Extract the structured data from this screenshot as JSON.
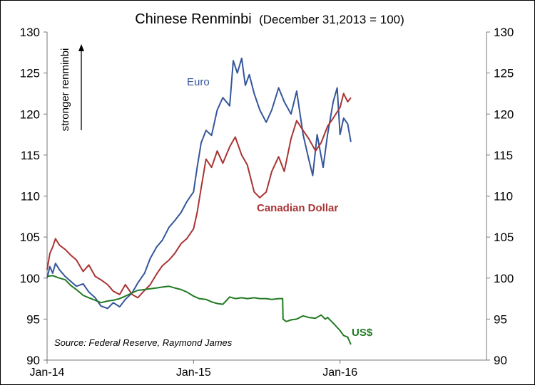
{
  "chart_data": {
    "type": "line",
    "title": "Chinese Renminbi",
    "subtitle": "(December 31,2013 = 100)",
    "ylabel": "stronger renminbi",
    "ylim": [
      90,
      130
    ],
    "yticks": [
      90,
      95,
      100,
      105,
      110,
      115,
      120,
      125,
      130
    ],
    "xlim": [
      "2014-01-01",
      "2016-12-31"
    ],
    "xticks": [
      {
        "date": "2014-01-01",
        "label": "Jan-14"
      },
      {
        "date": "2015-01-01",
        "label": "Jan-15"
      },
      {
        "date": "2016-01-01",
        "label": "Jan-16"
      }
    ],
    "source": "Source: Federal Reserve, Raymond James",
    "grid": false,
    "legend": "inline labels",
    "series": [
      {
        "name": "Euro",
        "color": "#35569b",
        "points": [
          [
            "2014-01-01",
            100.0
          ],
          [
            "2014-01-08",
            101.4
          ],
          [
            "2014-01-15",
            100.6
          ],
          [
            "2014-01-22",
            101.8
          ],
          [
            "2014-02-01",
            101.0
          ],
          [
            "2014-02-15",
            100.2
          ],
          [
            "2014-03-01",
            99.6
          ],
          [
            "2014-03-15",
            99.0
          ],
          [
            "2014-04-01",
            99.3
          ],
          [
            "2014-04-15",
            98.3
          ],
          [
            "2014-05-01",
            97.6
          ],
          [
            "2014-05-15",
            96.6
          ],
          [
            "2014-06-01",
            96.3
          ],
          [
            "2014-06-15",
            97.0
          ],
          [
            "2014-07-01",
            96.5
          ],
          [
            "2014-07-15",
            97.4
          ],
          [
            "2014-08-01",
            98.2
          ],
          [
            "2014-08-15",
            99.4
          ],
          [
            "2014-09-01",
            100.6
          ],
          [
            "2014-09-15",
            102.4
          ],
          [
            "2014-10-01",
            103.8
          ],
          [
            "2014-10-15",
            104.6
          ],
          [
            "2014-11-01",
            106.2
          ],
          [
            "2014-11-15",
            107.0
          ],
          [
            "2014-12-01",
            108.0
          ],
          [
            "2014-12-15",
            109.3
          ],
          [
            "2015-01-01",
            110.5
          ],
          [
            "2015-01-10",
            113.5
          ],
          [
            "2015-01-20",
            116.5
          ],
          [
            "2015-02-01",
            118.0
          ],
          [
            "2015-02-15",
            117.4
          ],
          [
            "2015-03-01",
            120.5
          ],
          [
            "2015-03-15",
            122.0
          ],
          [
            "2015-04-01",
            121.0
          ],
          [
            "2015-04-10",
            126.5
          ],
          [
            "2015-04-20",
            125.0
          ],
          [
            "2015-05-01",
            126.8
          ],
          [
            "2015-05-10",
            123.5
          ],
          [
            "2015-05-20",
            124.8
          ],
          [
            "2015-06-01",
            122.5
          ],
          [
            "2015-06-15",
            120.5
          ],
          [
            "2015-07-01",
            119.0
          ],
          [
            "2015-07-15",
            120.5
          ],
          [
            "2015-08-01",
            123.2
          ],
          [
            "2015-08-15",
            121.5
          ],
          [
            "2015-09-01",
            120.0
          ],
          [
            "2015-09-15",
            122.8
          ],
          [
            "2015-10-01",
            117.5
          ],
          [
            "2015-10-15",
            114.5
          ],
          [
            "2015-10-25",
            112.5
          ],
          [
            "2015-11-05",
            117.5
          ],
          [
            "2015-11-20",
            113.5
          ],
          [
            "2015-12-01",
            117.5
          ],
          [
            "2015-12-15",
            121.5
          ],
          [
            "2015-12-25",
            123.2
          ],
          [
            "2016-01-01",
            117.5
          ],
          [
            "2016-01-10",
            119.5
          ],
          [
            "2016-01-20",
            118.8
          ],
          [
            "2016-01-28",
            116.6
          ]
        ]
      },
      {
        "name": "Canadian Dollar",
        "color": "#a93434",
        "points": [
          [
            "2014-01-01",
            101.0
          ],
          [
            "2014-01-08",
            103.0
          ],
          [
            "2014-01-15",
            103.8
          ],
          [
            "2014-01-22",
            104.8
          ],
          [
            "2014-02-01",
            104.0
          ],
          [
            "2014-02-15",
            103.5
          ],
          [
            "2014-03-01",
            102.8
          ],
          [
            "2014-03-15",
            102.2
          ],
          [
            "2014-04-01",
            100.8
          ],
          [
            "2014-04-15",
            101.6
          ],
          [
            "2014-05-01",
            100.2
          ],
          [
            "2014-05-15",
            99.8
          ],
          [
            "2014-06-01",
            99.2
          ],
          [
            "2014-06-15",
            98.4
          ],
          [
            "2014-07-01",
            98.0
          ],
          [
            "2014-07-15",
            99.2
          ],
          [
            "2014-08-01",
            98.0
          ],
          [
            "2014-08-15",
            97.6
          ],
          [
            "2014-09-01",
            98.5
          ],
          [
            "2014-09-15",
            99.2
          ],
          [
            "2014-10-01",
            100.5
          ],
          [
            "2014-10-15",
            101.5
          ],
          [
            "2014-11-01",
            102.2
          ],
          [
            "2014-11-15",
            103.0
          ],
          [
            "2014-12-01",
            104.2
          ],
          [
            "2014-12-15",
            104.8
          ],
          [
            "2015-01-01",
            106.0
          ],
          [
            "2015-01-10",
            108.0
          ],
          [
            "2015-01-20",
            111.0
          ],
          [
            "2015-02-01",
            114.5
          ],
          [
            "2015-02-15",
            113.5
          ],
          [
            "2015-03-01",
            115.5
          ],
          [
            "2015-03-15",
            114.0
          ],
          [
            "2015-04-01",
            116.0
          ],
          [
            "2015-04-15",
            117.2
          ],
          [
            "2015-05-01",
            115.0
          ],
          [
            "2015-05-15",
            113.8
          ],
          [
            "2015-06-01",
            110.5
          ],
          [
            "2015-06-15",
            109.8
          ],
          [
            "2015-07-01",
            110.5
          ],
          [
            "2015-07-15",
            113.0
          ],
          [
            "2015-08-01",
            114.8
          ],
          [
            "2015-08-15",
            113.0
          ],
          [
            "2015-09-01",
            117.0
          ],
          [
            "2015-09-15",
            119.2
          ],
          [
            "2015-10-01",
            118.0
          ],
          [
            "2015-10-15",
            117.0
          ],
          [
            "2015-11-01",
            115.5
          ],
          [
            "2015-11-15",
            116.5
          ],
          [
            "2015-12-01",
            118.5
          ],
          [
            "2015-12-15",
            119.5
          ],
          [
            "2016-01-01",
            120.8
          ],
          [
            "2016-01-10",
            122.5
          ],
          [
            "2016-01-20",
            121.5
          ],
          [
            "2016-01-28",
            122.0
          ]
        ]
      },
      {
        "name": "US$",
        "color": "#227a22",
        "points": [
          [
            "2014-01-01",
            100.2
          ],
          [
            "2014-01-15",
            100.3
          ],
          [
            "2014-02-01",
            100.0
          ],
          [
            "2014-02-15",
            99.8
          ],
          [
            "2014-03-01",
            99.1
          ],
          [
            "2014-03-15",
            98.6
          ],
          [
            "2014-04-01",
            97.9
          ],
          [
            "2014-04-15",
            97.6
          ],
          [
            "2014-05-01",
            97.3
          ],
          [
            "2014-05-15",
            97.0
          ],
          [
            "2014-06-01",
            97.2
          ],
          [
            "2014-06-15",
            97.3
          ],
          [
            "2014-07-01",
            97.5
          ],
          [
            "2014-07-15",
            97.8
          ],
          [
            "2014-08-01",
            98.2
          ],
          [
            "2014-08-15",
            98.5
          ],
          [
            "2014-09-01",
            98.6
          ],
          [
            "2014-09-15",
            98.7
          ],
          [
            "2014-10-01",
            98.8
          ],
          [
            "2014-10-15",
            98.9
          ],
          [
            "2014-11-01",
            99.0
          ],
          [
            "2014-11-15",
            98.8
          ],
          [
            "2014-12-01",
            98.6
          ],
          [
            "2014-12-15",
            98.3
          ],
          [
            "2015-01-01",
            97.8
          ],
          [
            "2015-01-15",
            97.5
          ],
          [
            "2015-02-01",
            97.4
          ],
          [
            "2015-02-15",
            97.1
          ],
          [
            "2015-03-01",
            96.9
          ],
          [
            "2015-03-15",
            96.8
          ],
          [
            "2015-04-01",
            97.7
          ],
          [
            "2015-04-15",
            97.5
          ],
          [
            "2015-05-01",
            97.6
          ],
          [
            "2015-05-15",
            97.5
          ],
          [
            "2015-06-01",
            97.6
          ],
          [
            "2015-06-15",
            97.5
          ],
          [
            "2015-07-01",
            97.5
          ],
          [
            "2015-07-15",
            97.4
          ],
          [
            "2015-08-01",
            97.5
          ],
          [
            "2015-08-11",
            97.5
          ],
          [
            "2015-08-12",
            95.0
          ],
          [
            "2015-08-20",
            94.7
          ],
          [
            "2015-09-01",
            94.9
          ],
          [
            "2015-09-15",
            95.0
          ],
          [
            "2015-10-01",
            95.4
          ],
          [
            "2015-10-15",
            95.2
          ],
          [
            "2015-11-01",
            95.1
          ],
          [
            "2015-11-15",
            95.5
          ],
          [
            "2015-11-25",
            95.0
          ],
          [
            "2015-12-01",
            95.2
          ],
          [
            "2015-12-15",
            94.5
          ],
          [
            "2016-01-01",
            93.6
          ],
          [
            "2016-01-10",
            93.0
          ],
          [
            "2016-01-20",
            92.8
          ],
          [
            "2016-01-28",
            91.9
          ]
        ]
      }
    ]
  }
}
